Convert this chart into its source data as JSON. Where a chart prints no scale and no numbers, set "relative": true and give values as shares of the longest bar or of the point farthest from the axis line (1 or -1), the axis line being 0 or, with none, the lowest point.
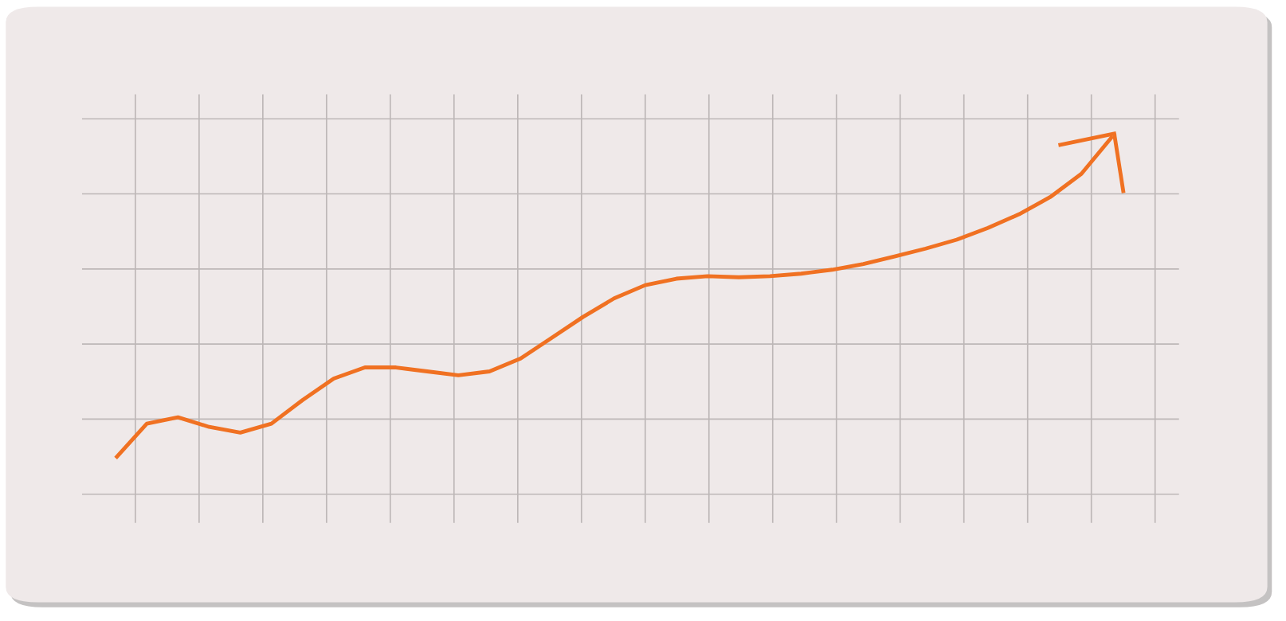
{
  "chart_data": {
    "type": "line",
    "relative": true,
    "grid": true,
    "marker": "none",
    "line_style": "solid",
    "categories": [
      null,
      null,
      null,
      null,
      null,
      null,
      null,
      null,
      null,
      null,
      null,
      null,
      null,
      null,
      null,
      null,
      null,
      null,
      null,
      null,
      null,
      null,
      null,
      null,
      null,
      null,
      null,
      null,
      null,
      null,
      null,
      null,
      null
    ],
    "series": [
      {
        "color": "#f07122",
        "values": [
          0.101,
          0.197,
          0.215,
          0.188,
          0.172,
          0.197,
          0.263,
          0.323,
          0.354,
          0.354,
          0.343,
          0.332,
          0.343,
          0.379,
          0.437,
          0.495,
          0.547,
          0.584,
          0.602,
          0.609,
          0.606,
          0.609,
          0.616,
          0.627,
          0.643,
          0.664,
          0.686,
          0.711,
          0.744,
          0.782,
          0.83,
          0.895,
          1
        ]
      }
    ]
  }
}
